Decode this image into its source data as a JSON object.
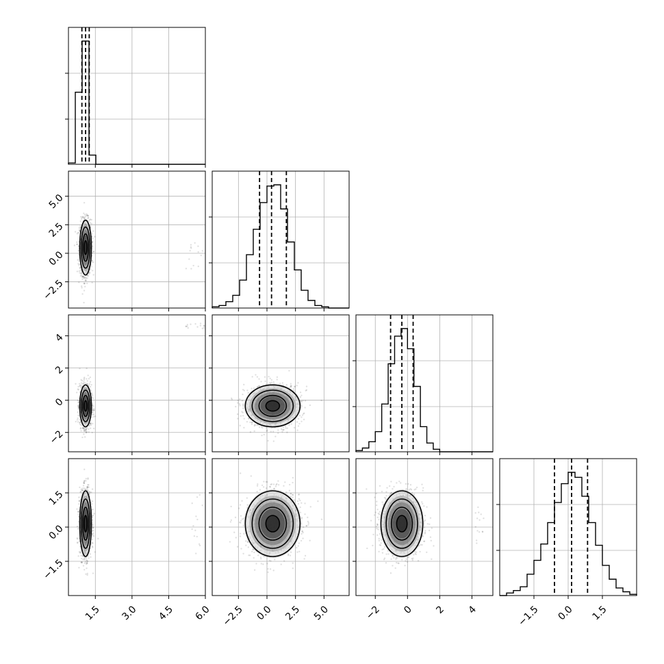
{
  "chart_data": {
    "type": "corner",
    "title": "",
    "parameters": [
      {
        "range": [
          0.4,
          6.0
        ],
        "ticks": [
          1.5,
          3.0,
          4.5,
          6.0
        ],
        "tick_labels": [
          "1.5",
          "3.0",
          "4.5",
          "6.0"
        ],
        "quantiles": [
          0.95,
          1.1,
          1.25
        ],
        "mean": 1.1,
        "sd": 0.12
      },
      {
        "range": [
          -4.8,
          7.2
        ],
        "ticks": [
          -2.5,
          0.0,
          2.5,
          5.0
        ],
        "tick_labels": [
          "−2.5",
          "0.0",
          "2.5",
          "5.0"
        ],
        "quantiles": [
          -0.65,
          0.4,
          1.7
        ],
        "mean": 0.5,
        "sd": 1.2
      },
      {
        "range": [
          -3.2,
          5.3
        ],
        "ticks": [
          -2,
          0,
          2,
          4
        ],
        "tick_labels": [
          "−2",
          "0",
          "2",
          "4"
        ],
        "quantiles": [
          -1.05,
          -0.35,
          0.35
        ],
        "mean": -0.35,
        "sd": 0.65
      },
      {
        "range": [
          -3.0,
          3.0
        ],
        "ticks": [
          -1.5,
          0.0,
          1.5
        ],
        "tick_labels": [
          "−1.5",
          "0.0",
          "1.5"
        ],
        "quantiles": [
          -0.6,
          0.15,
          0.85
        ],
        "mean": 0.15,
        "sd": 0.72
      }
    ],
    "histograms": [
      {
        "param": 0,
        "bin_edges": [
          0.4,
          0.68,
          0.96,
          1.24,
          1.52,
          1.8,
          6.0
        ],
        "counts": [
          0.01,
          0.55,
          0.94,
          0.07,
          0.0,
          0.0
        ]
      },
      {
        "param": 1,
        "bin_edges": [
          -4.8,
          -4.2,
          -3.6,
          -3.0,
          -2.4,
          -1.8,
          -1.2,
          -0.6,
          0.0,
          0.6,
          1.2,
          1.8,
          2.4,
          3.0,
          3.6,
          4.2,
          4.8,
          5.4,
          7.2
        ],
        "counts": [
          0.01,
          0.02,
          0.05,
          0.1,
          0.22,
          0.42,
          0.62,
          0.83,
          0.96,
          0.97,
          0.78,
          0.52,
          0.3,
          0.14,
          0.06,
          0.02,
          0.01,
          0.0
        ]
      },
      {
        "param": 2,
        "bin_edges": [
          -3.2,
          -2.8,
          -2.4,
          -2.0,
          -1.6,
          -1.2,
          -0.8,
          -0.4,
          0.0,
          0.4,
          0.8,
          1.2,
          1.6,
          2.0,
          5.3
        ],
        "counts": [
          0.01,
          0.03,
          0.08,
          0.16,
          0.38,
          0.7,
          0.92,
          0.98,
          0.82,
          0.52,
          0.2,
          0.07,
          0.02,
          0.0
        ]
      },
      {
        "param": 3,
        "bin_edges": [
          -3.0,
          -2.7,
          -2.4,
          -2.1,
          -1.8,
          -1.5,
          -1.2,
          -0.9,
          -0.6,
          -0.3,
          0.0,
          0.3,
          0.6,
          0.9,
          1.2,
          1.5,
          1.8,
          2.1,
          2.4,
          2.7,
          3.0
        ],
        "counts": [
          0.0,
          0.02,
          0.04,
          0.07,
          0.17,
          0.28,
          0.41,
          0.58,
          0.74,
          0.89,
          0.98,
          0.94,
          0.79,
          0.58,
          0.4,
          0.24,
          0.13,
          0.06,
          0.03,
          0.01
        ]
      }
    ],
    "scatter_panels": [
      {
        "x_param": 0,
        "y_param": 1,
        "correlation": 0.0,
        "contour_sigmas": [
          0.5,
          1.0,
          1.5,
          2.0
        ]
      },
      {
        "x_param": 0,
        "y_param": 2,
        "correlation": 0.0,
        "contour_sigmas": [
          0.5,
          1.0,
          1.5,
          2.0
        ]
      },
      {
        "x_param": 0,
        "y_param": 3,
        "correlation": 0.0,
        "contour_sigmas": [
          0.5,
          1.0,
          1.5,
          2.0
        ]
      },
      {
        "x_param": 1,
        "y_param": 2,
        "correlation": 0.05,
        "contour_sigmas": [
          0.5,
          1.0,
          1.5,
          2.0
        ]
      },
      {
        "x_param": 1,
        "y_param": 3,
        "correlation": 0.05,
        "contour_sigmas": [
          0.5,
          1.0,
          1.5,
          2.0
        ]
      },
      {
        "x_param": 2,
        "y_param": 3,
        "correlation": 0.0,
        "contour_sigmas": [
          0.5,
          1.0,
          1.5,
          2.0
        ]
      }
    ],
    "outlier_clusters": [
      {
        "panel": "0-1",
        "x": [
          5.2,
          5.9
        ],
        "y": [
          -1.5,
          2.2
        ]
      },
      {
        "panel": "0-2",
        "x": [
          5.2,
          6.0
        ],
        "y": [
          4.4,
          4.9
        ]
      },
      {
        "panel": "0-3",
        "x": [
          5.4,
          5.9
        ],
        "y": [
          -1.4,
          1.5
        ]
      },
      {
        "panel": "2-3",
        "x": [
          4.2,
          4.8
        ],
        "y": [
          -0.8,
          0.9
        ]
      }
    ],
    "grid": true,
    "colors": {
      "points": "#000000",
      "contours": "#000000",
      "histogram": "#000000",
      "grid": "#b0b0b0"
    }
  }
}
